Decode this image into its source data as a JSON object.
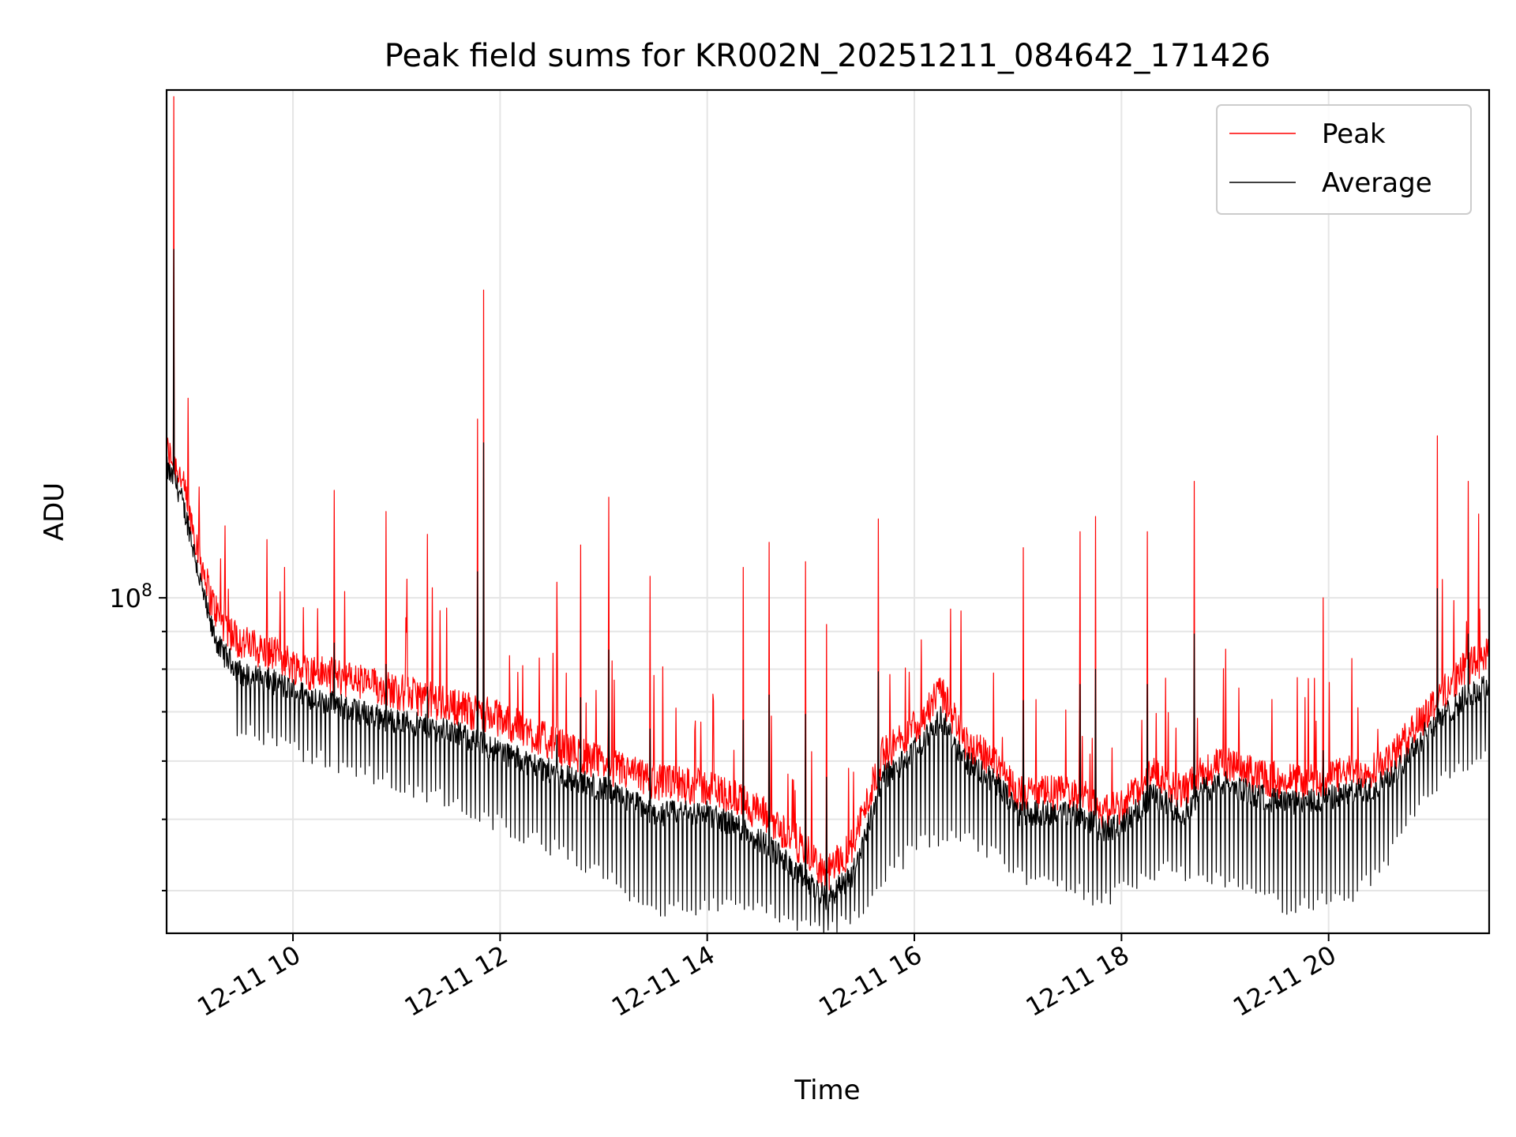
{
  "chart_data": {
    "type": "line",
    "title": "Peak field sums for KR002N_20251211_084642_171426",
    "xlabel": "Time",
    "ylabel": "ADU",
    "yscale": "log",
    "x_unit": "hours of day 2025-12-11",
    "xlim": [
      8.78,
      21.55
    ],
    "ylim": [
      35000000,
      490000000
    ],
    "x_ticks": [
      {
        "value": 10,
        "label": "12-11 10"
      },
      {
        "value": 12,
        "label": "12-11 12"
      },
      {
        "value": 14,
        "label": "12-11 14"
      },
      {
        "value": 16,
        "label": "12-11 16"
      },
      {
        "value": 18,
        "label": "12-11 18"
      },
      {
        "value": 20,
        "label": "12-11 20"
      }
    ],
    "y_major_ticks": [
      {
        "value": 100000000,
        "label_base": "10",
        "label_exp": "8"
      }
    ],
    "y_minor_ticks": [
      40000000,
      50000000,
      60000000,
      70000000,
      80000000,
      90000000
    ],
    "grid": true,
    "legend_position": "top-right",
    "colors": {
      "peak": "#ff0000",
      "average": "#000000"
    },
    "series": [
      {
        "name": "Peak",
        "color": "#ff0000",
        "baseline_x": [
          8.78,
          8.9,
          9.0,
          9.1,
          9.2,
          9.3,
          9.5,
          9.8,
          10.1,
          10.5,
          11.0,
          11.5,
          12.0,
          12.5,
          13.0,
          13.5,
          14.0,
          14.3,
          14.6,
          14.9,
          15.15,
          15.4,
          15.7,
          15.9,
          16.1,
          16.25,
          16.5,
          16.8,
          17.0,
          17.2,
          17.6,
          17.8,
          18.0,
          18.3,
          18.6,
          18.8,
          19.0,
          19.3,
          19.6,
          19.9,
          20.1,
          20.4,
          20.6,
          20.8,
          21.0,
          21.3,
          21.55
        ],
        "baseline_y": [
          155000000,
          145000000,
          128000000,
          112000000,
          98000000,
          91000000,
          85000000,
          82000000,
          78000000,
          76000000,
          73000000,
          70000000,
          67000000,
          62000000,
          58000000,
          55000000,
          54000000,
          52000000,
          49000000,
          45000000,
          41000000,
          45000000,
          60000000,
          63000000,
          68000000,
          73000000,
          62000000,
          58000000,
          53000000,
          53000000,
          53000000,
          50000000,
          51000000,
          56000000,
          53000000,
          57000000,
          58000000,
          56000000,
          55000000,
          55000000,
          56000000,
          57000000,
          59000000,
          64000000,
          70000000,
          78000000,
          82000000
        ],
        "spikes": [
          {
            "x": 8.85,
            "y": 480000000
          },
          {
            "x": 9.3,
            "y": 113000000
          },
          {
            "x": 9.75,
            "y": 120000000
          },
          {
            "x": 9.92,
            "y": 110000000
          },
          {
            "x": 10.1,
            "y": 97000000
          },
          {
            "x": 10.4,
            "y": 140000000
          },
          {
            "x": 10.5,
            "y": 102000000
          },
          {
            "x": 10.9,
            "y": 131000000
          },
          {
            "x": 11.3,
            "y": 122000000
          },
          {
            "x": 11.78,
            "y": 175000000
          },
          {
            "x": 11.84,
            "y": 262000000
          },
          {
            "x": 12.55,
            "y": 105000000
          },
          {
            "x": 12.78,
            "y": 118000000
          },
          {
            "x": 13.05,
            "y": 137000000
          },
          {
            "x": 13.45,
            "y": 107000000
          },
          {
            "x": 14.35,
            "y": 110000000
          },
          {
            "x": 14.6,
            "y": 119000000
          },
          {
            "x": 14.95,
            "y": 112000000
          },
          {
            "x": 15.15,
            "y": 92000000
          },
          {
            "x": 15.65,
            "y": 128000000
          },
          {
            "x": 16.45,
            "y": 96000000
          },
          {
            "x": 17.05,
            "y": 117000000
          },
          {
            "x": 17.6,
            "y": 123000000
          },
          {
            "x": 17.75,
            "y": 129000000
          },
          {
            "x": 18.25,
            "y": 123000000
          },
          {
            "x": 18.7,
            "y": 144000000
          },
          {
            "x": 19.95,
            "y": 100000000
          },
          {
            "x": 21.05,
            "y": 166000000
          },
          {
            "x": 21.35,
            "y": 144000000
          },
          {
            "x": 21.45,
            "y": 130000000
          }
        ]
      },
      {
        "name": "Average",
        "color": "#000000",
        "baseline_x": [
          8.78,
          8.9,
          9.0,
          9.1,
          9.2,
          9.3,
          9.5,
          9.8,
          10.1,
          10.5,
          11.0,
          11.5,
          12.0,
          12.5,
          13.0,
          13.5,
          14.0,
          14.3,
          14.6,
          14.9,
          15.15,
          15.4,
          15.7,
          15.9,
          16.1,
          16.25,
          16.5,
          16.8,
          17.0,
          17.2,
          17.6,
          17.8,
          18.0,
          18.3,
          18.6,
          18.8,
          19.0,
          19.3,
          19.6,
          19.9,
          20.1,
          20.4,
          20.6,
          20.8,
          21.0,
          21.3,
          21.55
        ],
        "baseline_y": [
          150000000,
          140000000,
          124000000,
          106000000,
          92000000,
          85000000,
          79000000,
          77000000,
          74000000,
          71000000,
          68000000,
          66000000,
          62000000,
          58000000,
          55000000,
          51000000,
          51000000,
          49000000,
          46000000,
          42000000,
          39000000,
          42000000,
          57000000,
          60000000,
          64000000,
          69000000,
          60000000,
          56000000,
          51000000,
          51000000,
          51000000,
          48500000,
          49000000,
          54000000,
          51000000,
          55000000,
          56000000,
          54000000,
          52500000,
          53000000,
          54000000,
          55000000,
          57000000,
          62000000,
          67000000,
          73000000,
          76000000
        ],
        "dip_floor": [
          {
            "x": 9.5,
            "y": 66000000
          },
          {
            "x": 10.5,
            "y": 59000000
          },
          {
            "x": 11.5,
            "y": 53000000
          },
          {
            "x": 12.5,
            "y": 46000000
          },
          {
            "x": 13.5,
            "y": 38000000
          },
          {
            "x": 14.0,
            "y": 38000000
          },
          {
            "x": 14.5,
            "y": 38000000
          },
          {
            "x": 15.1,
            "y": 35000000
          },
          {
            "x": 15.5,
            "y": 38000000
          },
          {
            "x": 16.0,
            "y": 46000000
          },
          {
            "x": 16.5,
            "y": 48000000
          },
          {
            "x": 17.0,
            "y": 42000000
          },
          {
            "x": 17.8,
            "y": 39000000
          },
          {
            "x": 18.5,
            "y": 43000000
          },
          {
            "x": 19.0,
            "y": 41000000
          },
          {
            "x": 19.6,
            "y": 38000000
          },
          {
            "x": 20.3,
            "y": 40000000
          },
          {
            "x": 20.6,
            "y": 45000000
          },
          {
            "x": 21.0,
            "y": 55000000
          },
          {
            "x": 21.55,
            "y": 62000000
          }
        ]
      }
    ]
  }
}
